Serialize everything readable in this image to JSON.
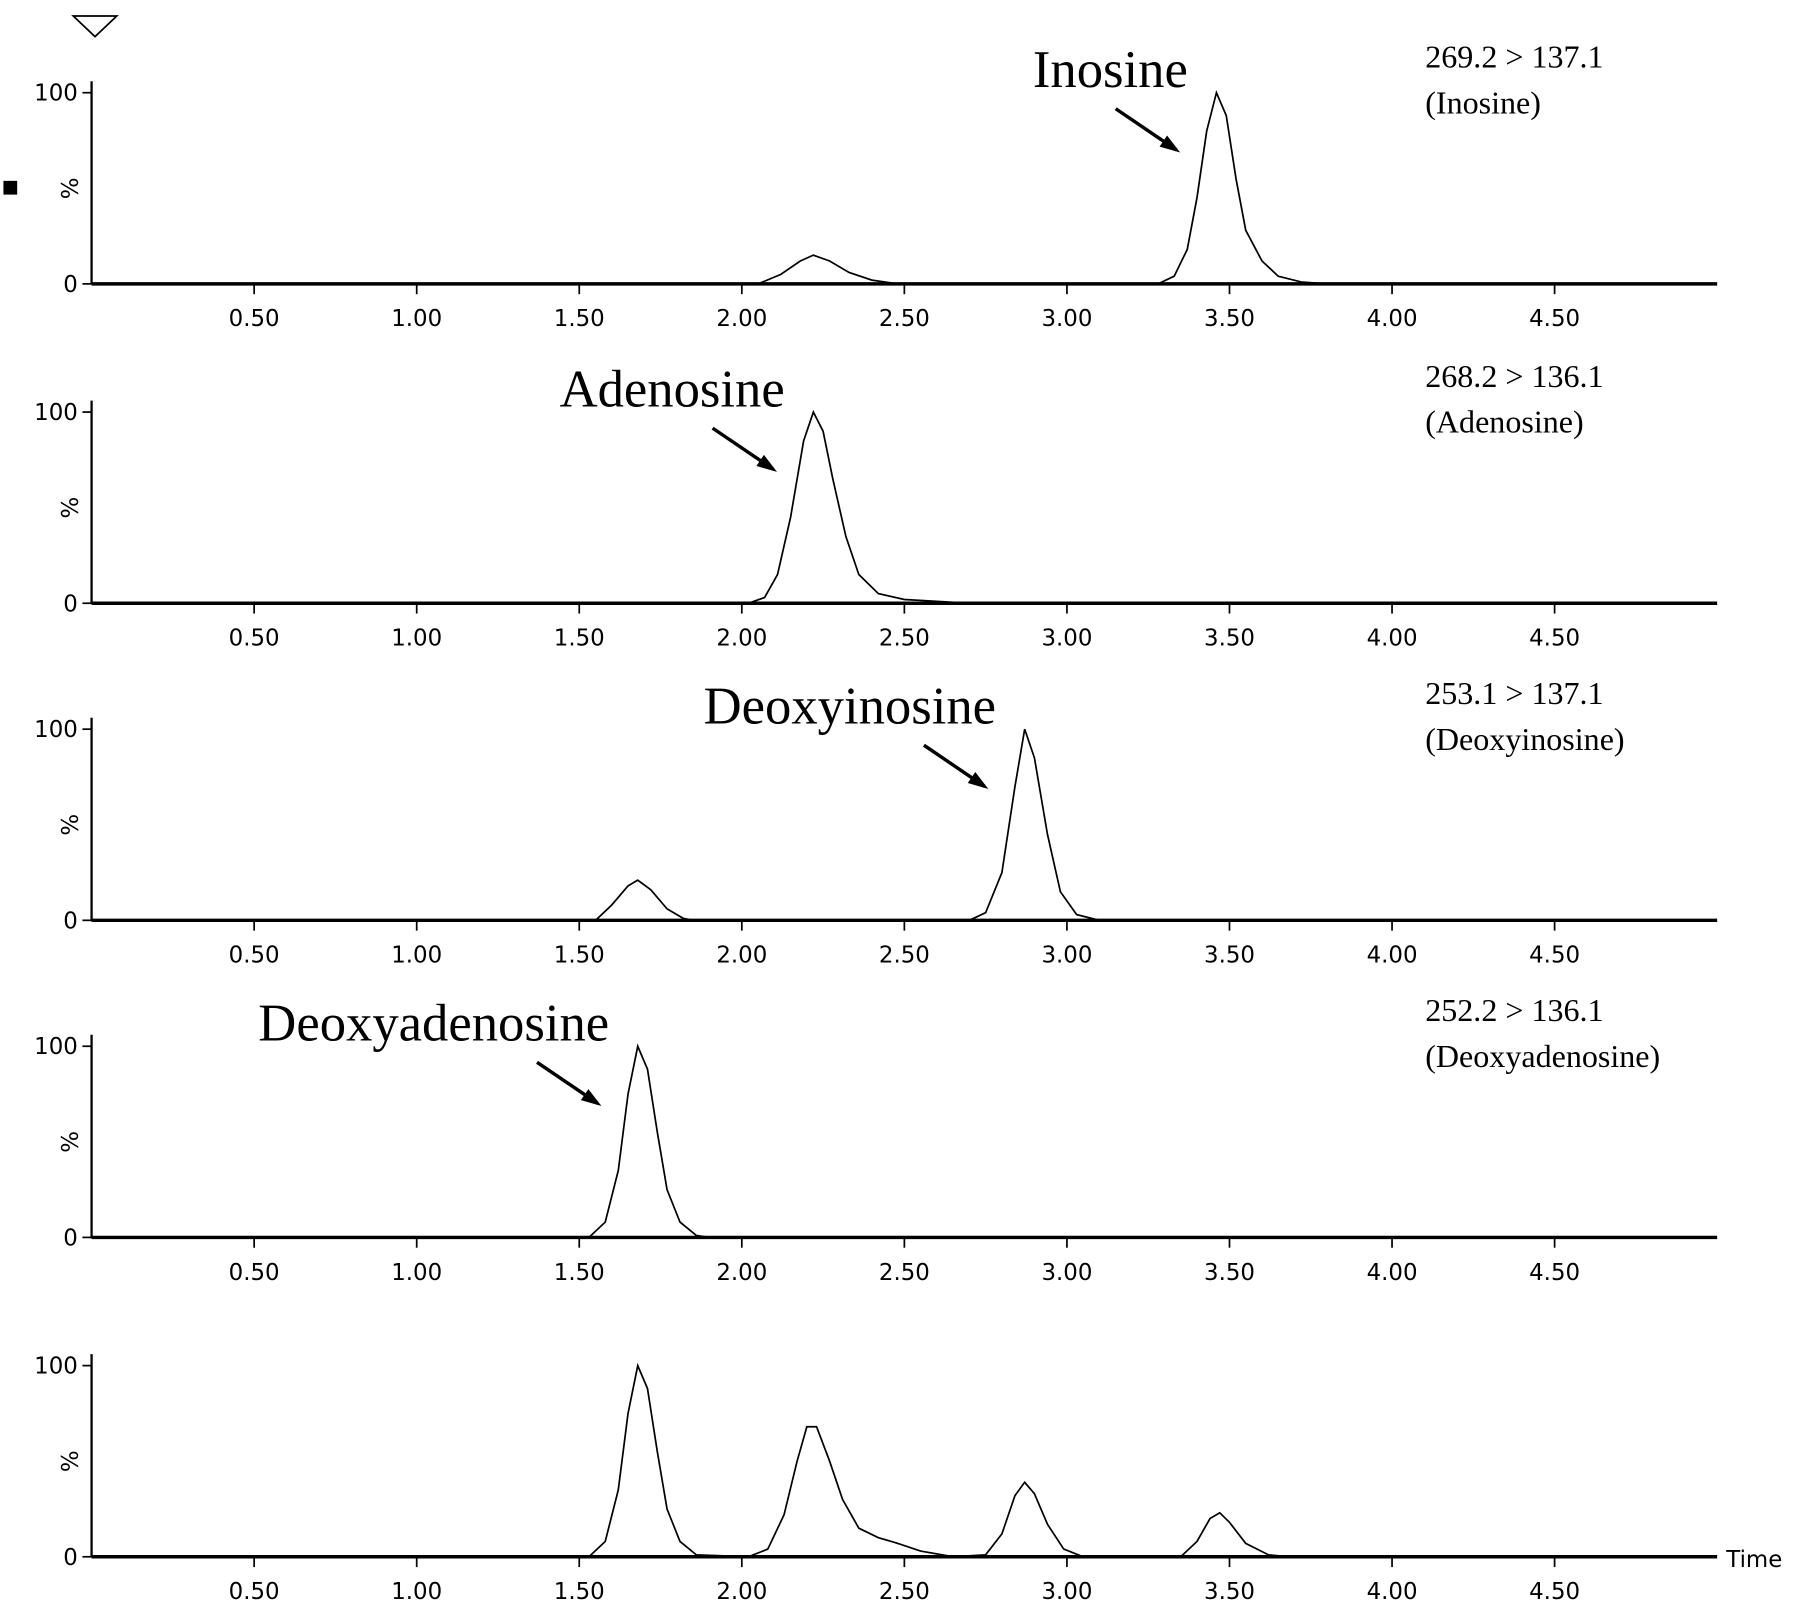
{
  "chart_data": [
    {
      "type": "line",
      "annotation": "Inosine",
      "transition": "269.2 > 137.1",
      "compound": "(Inosine)",
      "ylabel": "%",
      "color": "#000000",
      "x": [
        0,
        2.05,
        2.12,
        2.18,
        2.22,
        2.27,
        2.33,
        2.4,
        2.48,
        3.28,
        3.33,
        3.37,
        3.4,
        3.43,
        3.46,
        3.49,
        3.52,
        3.55,
        3.6,
        3.65,
        3.72,
        3.8,
        4.98
      ],
      "values": [
        0,
        0,
        5,
        12,
        15,
        12,
        6,
        2,
        0,
        0,
        4,
        18,
        45,
        80,
        100,
        88,
        55,
        28,
        12,
        4,
        1,
        0,
        0
      ],
      "xlim": [
        0,
        5.0
      ],
      "ylim": [
        0,
        100
      ],
      "yticks": [
        0,
        100
      ],
      "xticks": [
        {
          "value": 0.5,
          "label": "0.50"
        },
        {
          "value": 1.0,
          "label": "1.00"
        },
        {
          "value": 1.5,
          "label": "1.50"
        },
        {
          "value": 2.0,
          "label": "2.00"
        },
        {
          "value": 2.5,
          "label": "2.50"
        },
        {
          "value": 3.0,
          "label": "3.00"
        },
        {
          "value": 3.5,
          "label": "3.50"
        },
        {
          "value": 4.0,
          "label": "4.00"
        },
        {
          "value": 4.5,
          "label": "4.50"
        }
      ]
    },
    {
      "type": "line",
      "annotation": "Adenosine",
      "transition": "268.2 > 136.1",
      "compound": "(Adenosine)",
      "ylabel": "%",
      "color": "#000000",
      "x": [
        0,
        2.02,
        2.07,
        2.11,
        2.15,
        2.19,
        2.22,
        2.25,
        2.28,
        2.32,
        2.36,
        2.42,
        2.5,
        2.6,
        2.7,
        4.98
      ],
      "values": [
        0,
        0,
        3,
        15,
        45,
        85,
        100,
        90,
        65,
        35,
        15,
        5,
        2,
        1,
        0,
        0
      ],
      "xlim": [
        0,
        5.0
      ],
      "ylim": [
        0,
        100
      ],
      "yticks": [
        0,
        100
      ],
      "xticks": [
        {
          "value": 0.5,
          "label": "0.50"
        },
        {
          "value": 1.0,
          "label": "1.00"
        },
        {
          "value": 1.5,
          "label": "1.50"
        },
        {
          "value": 2.0,
          "label": "2.00"
        },
        {
          "value": 2.5,
          "label": "2.50"
        },
        {
          "value": 3.0,
          "label": "3.00"
        },
        {
          "value": 3.5,
          "label": "3.50"
        },
        {
          "value": 4.0,
          "label": "4.00"
        },
        {
          "value": 4.5,
          "label": "4.50"
        }
      ]
    },
    {
      "type": "line",
      "annotation": "Deoxyinosine",
      "transition": "253.1 > 137.1",
      "compound": "(Deoxyinosine)",
      "ylabel": "%",
      "color": "#000000",
      "x": [
        0,
        1.55,
        1.6,
        1.65,
        1.68,
        1.72,
        1.77,
        1.82,
        1.85,
        2.7,
        2.75,
        2.8,
        2.84,
        2.87,
        2.9,
        2.94,
        2.98,
        3.03,
        3.1,
        4.98
      ],
      "values": [
        0,
        0,
        8,
        18,
        21,
        16,
        6,
        1,
        0,
        0,
        4,
        25,
        70,
        100,
        85,
        45,
        15,
        3,
        0,
        0
      ],
      "xlim": [
        0,
        5.0
      ],
      "ylim": [
        0,
        100
      ],
      "yticks": [
        0,
        100
      ],
      "xticks": [
        {
          "value": 0.5,
          "label": "0.50"
        },
        {
          "value": 1.0,
          "label": "1.00"
        },
        {
          "value": 1.5,
          "label": "1.50"
        },
        {
          "value": 2.0,
          "label": "2.00"
        },
        {
          "value": 2.5,
          "label": "2.50"
        },
        {
          "value": 3.0,
          "label": "3.00"
        },
        {
          "value": 3.5,
          "label": "3.50"
        },
        {
          "value": 4.0,
          "label": "4.00"
        },
        {
          "value": 4.5,
          "label": "4.50"
        }
      ]
    },
    {
      "type": "line",
      "annotation": "Deoxyadenosine",
      "transition": "252.2 > 136.1",
      "compound": "(Deoxyadenosine)",
      "ylabel": "%",
      "color": "#000000",
      "x": [
        0,
        1.53,
        1.58,
        1.62,
        1.65,
        1.68,
        1.71,
        1.74,
        1.77,
        1.81,
        1.86,
        1.9,
        4.98
      ],
      "values": [
        0,
        0,
        8,
        35,
        75,
        100,
        88,
        55,
        25,
        8,
        1,
        0,
        0
      ],
      "xlim": [
        0,
        5.0
      ],
      "ylim": [
        0,
        100
      ],
      "yticks": [
        0,
        100
      ],
      "xticks": [
        {
          "value": 0.5,
          "label": "0.50"
        },
        {
          "value": 1.0,
          "label": "1.00"
        },
        {
          "value": 1.5,
          "label": "1.50"
        },
        {
          "value": 2.0,
          "label": "2.00"
        },
        {
          "value": 2.5,
          "label": "2.50"
        },
        {
          "value": 3.0,
          "label": "3.00"
        },
        {
          "value": 3.5,
          "label": "3.50"
        },
        {
          "value": 4.0,
          "label": "4.00"
        },
        {
          "value": 4.5,
          "label": "4.50"
        }
      ]
    },
    {
      "type": "line",
      "ylabel": "%",
      "xlabel": "Time",
      "color": "#000000",
      "x": [
        0,
        1.53,
        1.58,
        1.62,
        1.65,
        1.68,
        1.71,
        1.74,
        1.77,
        1.81,
        1.86,
        2.02,
        2.08,
        2.13,
        2.17,
        2.2,
        2.23,
        2.27,
        2.31,
        2.36,
        2.42,
        2.48,
        2.55,
        2.65,
        2.75,
        2.8,
        2.84,
        2.87,
        2.9,
        2.94,
        2.99,
        3.05,
        3.35,
        3.4,
        3.44,
        3.47,
        3.5,
        3.55,
        3.62,
        3.68,
        4.98
      ],
      "values": [
        0,
        0,
        8,
        35,
        75,
        100,
        88,
        55,
        25,
        8,
        1,
        0,
        4,
        22,
        50,
        68,
        68,
        50,
        30,
        15,
        10,
        7,
        3,
        0,
        1,
        12,
        32,
        39,
        33,
        17,
        4,
        0,
        0,
        8,
        20,
        23,
        18,
        7,
        1,
        0,
        0
      ],
      "xlim": [
        0,
        5.0
      ],
      "ylim": [
        0,
        100
      ],
      "yticks": [
        0,
        100
      ],
      "xticks": [
        {
          "value": 0.5,
          "label": "0.50"
        },
        {
          "value": 1.0,
          "label": "1.00"
        },
        {
          "value": 1.5,
          "label": "1.50"
        },
        {
          "value": 2.0,
          "label": "2.00"
        },
        {
          "value": 2.5,
          "label": "2.50"
        },
        {
          "value": 3.0,
          "label": "3.00"
        },
        {
          "value": 3.5,
          "label": "3.50"
        },
        {
          "value": 4.0,
          "label": "4.00"
        },
        {
          "value": 4.5,
          "label": "4.50"
        }
      ]
    }
  ]
}
